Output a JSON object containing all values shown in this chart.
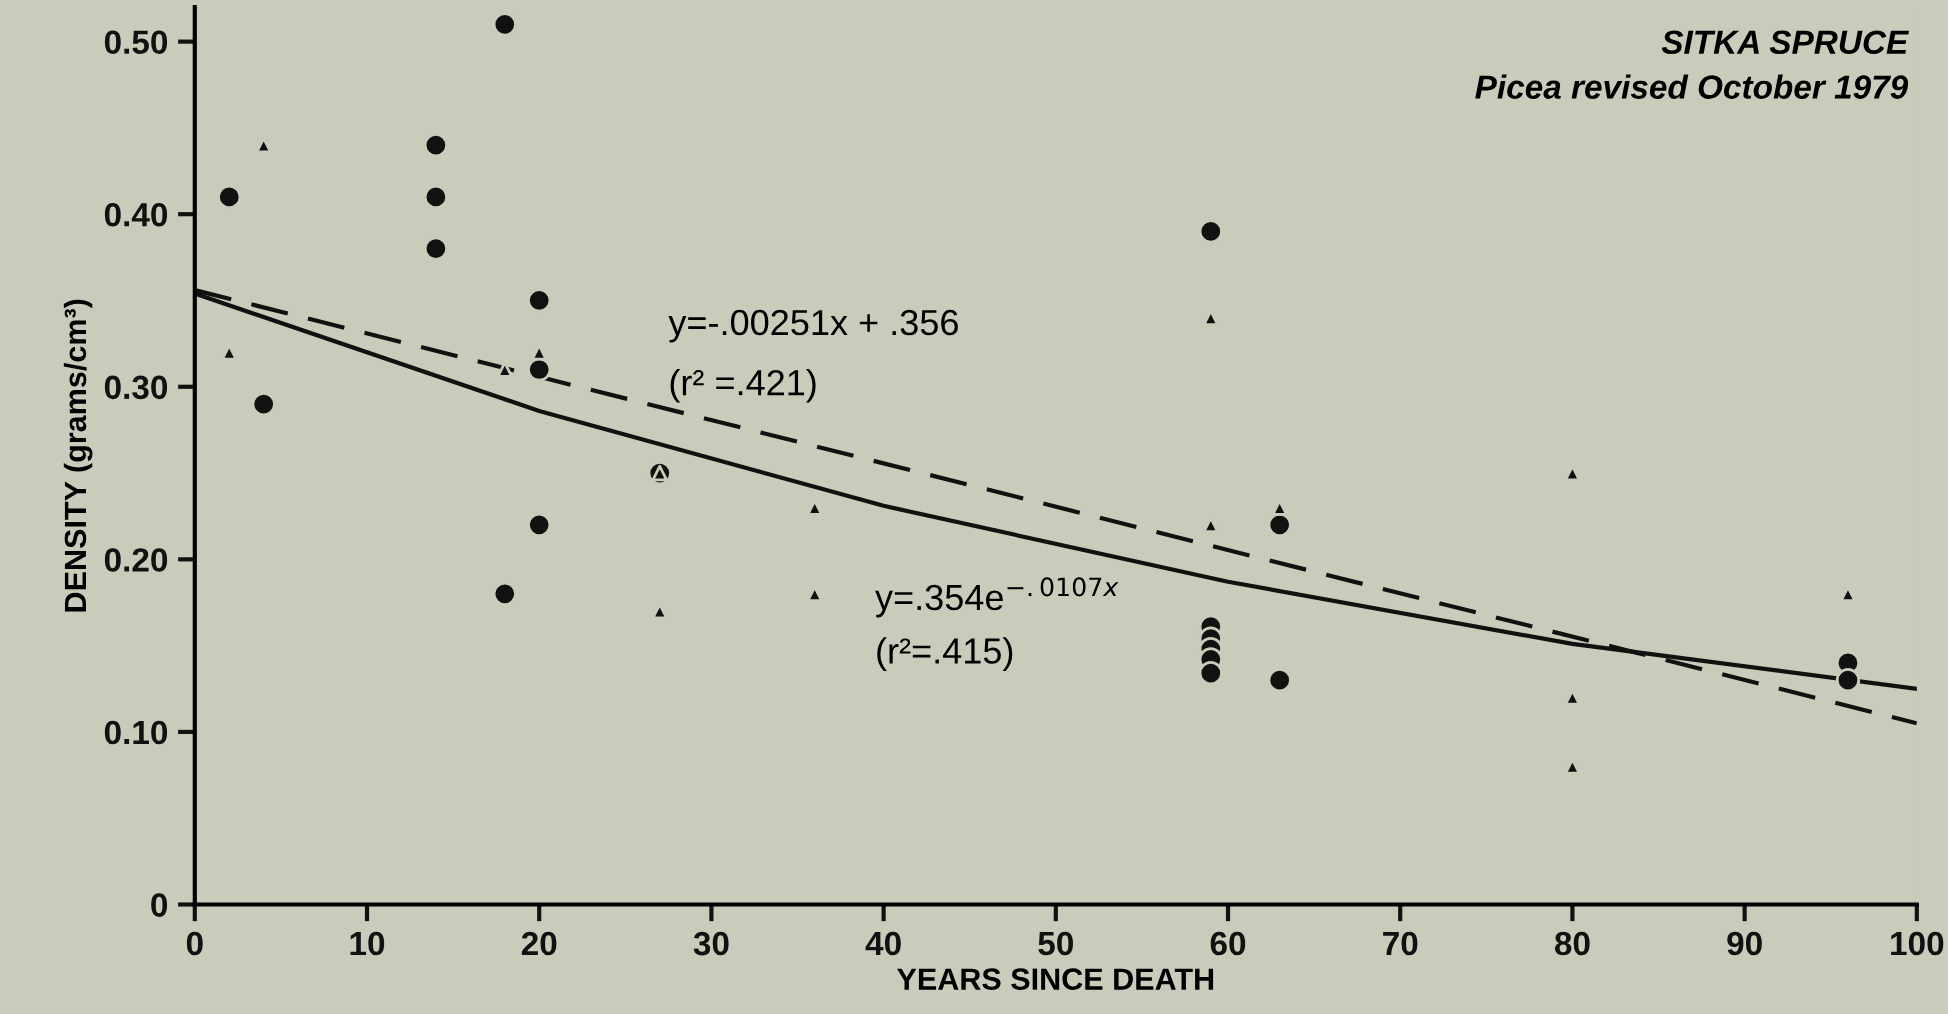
{
  "chart_data": {
    "type": "scatter",
    "title": "SITKA SPRUCE",
    "subtitle": "Picea revised October 1979",
    "xlabel": "YEARS SINCE DEATH",
    "ylabel": "DENSITY (grams/cm³)",
    "xlim": [
      0,
      100
    ],
    "ylim": [
      0,
      0.52
    ],
    "xticks": [
      0,
      10,
      20,
      30,
      40,
      50,
      60,
      70,
      80,
      90,
      100
    ],
    "yticks": [
      0,
      {
        "value": 0.1,
        "label": "0.10"
      },
      {
        "value": 0.2,
        "label": "0.20"
      },
      {
        "value": 0.3,
        "label": "0.30"
      },
      {
        "value": 0.4,
        "label": "0.40"
      },
      {
        "value": 0.5,
        "label": "0.50"
      }
    ],
    "grid": false,
    "legend": false,
    "series": [
      {
        "marker": "circle",
        "color": "#111111",
        "x": [
          2,
          4,
          14,
          14,
          14,
          18,
          18,
          20,
          20,
          20,
          27,
          59,
          59,
          59,
          59,
          59,
          59,
          63,
          63,
          96,
          96
        ],
        "values": [
          0.41,
          0.29,
          0.44,
          0.41,
          0.38,
          0.51,
          0.18,
          0.35,
          0.31,
          0.22,
          0.25,
          0.39,
          0.161,
          0.154,
          0.148,
          0.142,
          0.134,
          0.22,
          0.13,
          0.14,
          0.13
        ]
      },
      {
        "marker": "triangle",
        "color": "#111111",
        "x": [
          2,
          4,
          18,
          20,
          27,
          27,
          36,
          36,
          59,
          59,
          63,
          80,
          80,
          80,
          96
        ],
        "values": [
          0.32,
          0.44,
          0.31,
          0.32,
          0.25,
          0.17,
          0.23,
          0.18,
          0.34,
          0.22,
          0.23,
          0.25,
          0.12,
          0.08,
          0.18
        ]
      },
      {
        "type": "line",
        "marker": "none",
        "line_style": "dashed",
        "color": "#111111",
        "x": [
          0,
          100
        ],
        "values": [
          0.356,
          0.105
        ]
      },
      {
        "type": "line",
        "marker": "none",
        "line_style": "solid",
        "color": "#111111",
        "x": [
          0,
          20,
          40,
          60,
          80,
          100
        ],
        "values": [
          0.354,
          0.286,
          0.231,
          0.187,
          0.151,
          0.125
        ]
      }
    ],
    "annotations": [
      "y=-.00251x + .356",
      "(r² =.421)",
      "y=.354e$^{−.0107x}$",
      "(r²=.415)"
    ]
  }
}
